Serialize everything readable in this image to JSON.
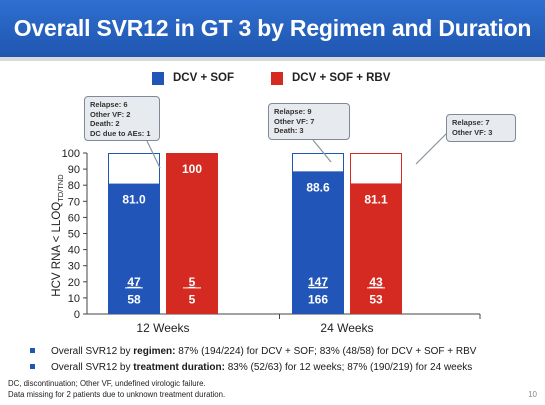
{
  "title": "Overall SVR12 in GT 3 by Regimen and Duration",
  "legend": [
    {
      "label": "DCV + SOF",
      "color": "#2155b8"
    },
    {
      "label": "DCV + SOF + RBV",
      "color": "#d42a21"
    }
  ],
  "callouts": [
    {
      "lines": [
        "Relapse: 6",
        "Other VF: 2",
        "Death: 2",
        "DC due to AEs: 1"
      ]
    },
    {
      "lines": [
        "Relapse: 9",
        "Other VF: 7",
        "Death: 3"
      ]
    },
    {
      "lines": [
        "Relapse: 7",
        "Other VF: 3"
      ]
    }
  ],
  "chart_data": {
    "type": "bar",
    "ylabel_main": "HCV RNA < LLOQ",
    "ylabel_sub": "TD/TND",
    "ylim": [
      0,
      100
    ],
    "yticks": [
      0,
      10,
      20,
      30,
      40,
      50,
      60,
      70,
      80,
      90,
      100
    ],
    "categories": [
      "12 Weeks",
      "24 Weeks"
    ],
    "series": [
      {
        "name": "DCV + SOF",
        "values": [
          81.0,
          88.6
        ],
        "labels": [
          "81.0",
          "88.6"
        ],
        "numerators": [
          "47",
          "147"
        ],
        "denominators": [
          "58",
          "166"
        ]
      },
      {
        "name": "DCV + SOF + RBV",
        "values": [
          100,
          81.1
        ],
        "labels": [
          "100",
          "81.1"
        ],
        "numerators": [
          "5",
          "43"
        ],
        "denominators": [
          "5",
          "53"
        ]
      }
    ]
  },
  "bullets": [
    {
      "prefix": "Overall SVR12 by ",
      "bold": "regimen:",
      "rest": " 87% (194/224) for DCV + SOF; 83% (48/58) for DCV + SOF + RBV"
    },
    {
      "prefix": "Overall SVR12 by ",
      "bold": "treatment duration:",
      "rest": " 83% (52/63) for 12 weeks; 87% (190/219) for 24 weeks"
    }
  ],
  "footnotes": [
    "DC, discontinuation; Other VF, undefined virologic failure.",
    "Data missing for 2 patients due to unknown treatment duration."
  ],
  "page_number": "10"
}
